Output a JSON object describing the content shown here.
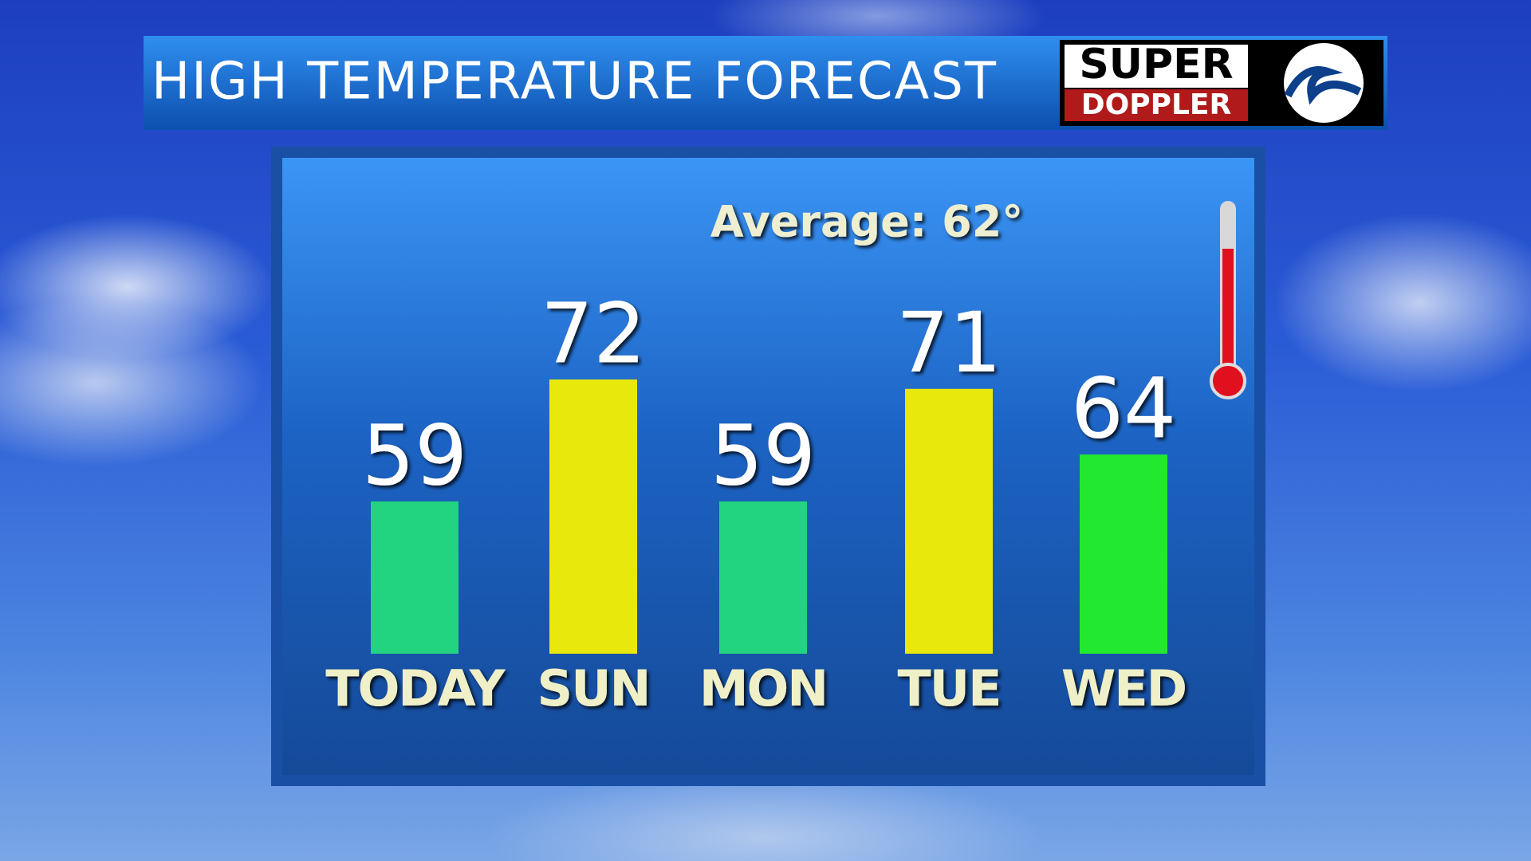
{
  "chart_data": {
    "type": "bar",
    "title": "HIGH TEMPERATURE FORECAST",
    "annotation": "Average: 62°",
    "categories": [
      "TODAY",
      "SUN",
      "MON",
      "TUE",
      "WED"
    ],
    "values": [
      59,
      72,
      59,
      71,
      64
    ],
    "colors": [
      "#22d47f",
      "#e8e80c",
      "#22d47f",
      "#e8e80c",
      "#22e830"
    ]
  },
  "logo": {
    "line1": "SUPER",
    "line2": "DOPPLER"
  }
}
